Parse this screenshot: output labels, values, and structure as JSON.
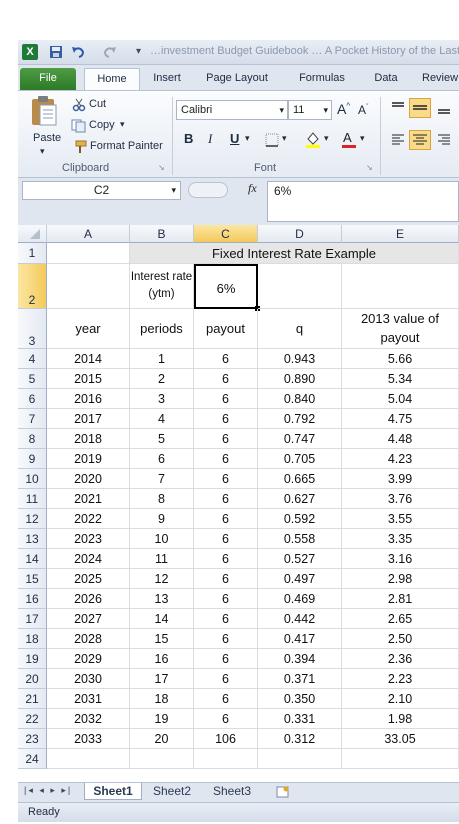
{
  "titlebar": {
    "qat_icons": [
      "excel-logo-icon",
      "save-icon",
      "undo-icon",
      "redo-icon",
      "customize-qat-icon"
    ],
    "title": "…investment Budget Guidebook … A Pocket History of the Last…"
  },
  "tabs": [
    "File",
    "Home",
    "Insert",
    "Page Layout",
    "Formulas",
    "Data",
    "Review"
  ],
  "ribbon": {
    "clipboard": {
      "paste": "Paste",
      "cut": "Cut",
      "copy": "Copy",
      "format_painter": "Format Painter",
      "label": "Clipboard"
    },
    "font": {
      "name": "Calibri",
      "size": "11",
      "bold": "B",
      "italic": "I",
      "underline": "U",
      "label": "Font"
    }
  },
  "formula_bar": {
    "name_box": "C2",
    "fx": "fx",
    "value": "6%"
  },
  "columns": [
    "A",
    "B",
    "C",
    "D",
    "E"
  ],
  "sheet": {
    "row1_title": "Fixed Interest Rate Example",
    "row2_label": "Interest rate (ytm)",
    "row2_value": "6%",
    "headers": [
      "year",
      "periods",
      "payout",
      "q",
      "2013 value of payout"
    ],
    "rows": [
      [
        "2014",
        "1",
        "6",
        "0.943",
        "5.66"
      ],
      [
        "2015",
        "2",
        "6",
        "0.890",
        "5.34"
      ],
      [
        "2016",
        "3",
        "6",
        "0.840",
        "5.04"
      ],
      [
        "2017",
        "4",
        "6",
        "0.792",
        "4.75"
      ],
      [
        "2018",
        "5",
        "6",
        "0.747",
        "4.48"
      ],
      [
        "2019",
        "6",
        "6",
        "0.705",
        "4.23"
      ],
      [
        "2020",
        "7",
        "6",
        "0.665",
        "3.99"
      ],
      [
        "2021",
        "8",
        "6",
        "0.627",
        "3.76"
      ],
      [
        "2022",
        "9",
        "6",
        "0.592",
        "3.55"
      ],
      [
        "2023",
        "10",
        "6",
        "0.558",
        "3.35"
      ],
      [
        "2024",
        "11",
        "6",
        "0.527",
        "3.16"
      ],
      [
        "2025",
        "12",
        "6",
        "0.497",
        "2.98"
      ],
      [
        "2026",
        "13",
        "6",
        "0.469",
        "2.81"
      ],
      [
        "2027",
        "14",
        "6",
        "0.442",
        "2.65"
      ],
      [
        "2028",
        "15",
        "6",
        "0.417",
        "2.50"
      ],
      [
        "2029",
        "16",
        "6",
        "0.394",
        "2.36"
      ],
      [
        "2030",
        "17",
        "6",
        "0.371",
        "2.23"
      ],
      [
        "2031",
        "18",
        "6",
        "0.350",
        "2.10"
      ],
      [
        "2032",
        "19",
        "6",
        "0.331",
        "1.98"
      ],
      [
        "2033",
        "20",
        "106",
        "0.312",
        "33.05"
      ]
    ]
  },
  "sheet_tabs": [
    "Sheet1",
    "Sheet2",
    "Sheet3"
  ],
  "status": "Ready",
  "colors": {
    "file_tab": "#2d7a27",
    "selection_header": "#f4c95a",
    "title_band": "#e6e6e6"
  }
}
